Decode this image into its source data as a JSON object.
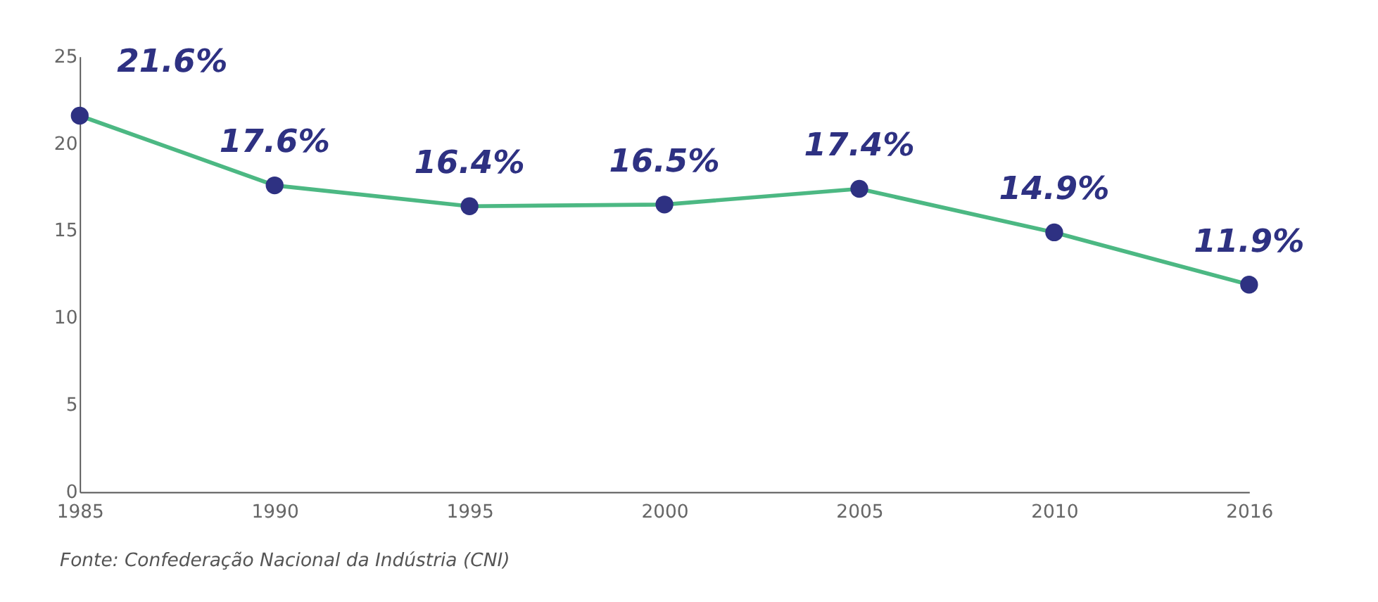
{
  "chart_data": {
    "type": "line",
    "categories": [
      "1985",
      "1990",
      "1995",
      "2000",
      "2005",
      "2010",
      "2016"
    ],
    "series": [
      {
        "color": "#4cb883",
        "colors": [
          "#2e3182",
          "#2e3182",
          "#2e3182",
          "#2e3182",
          "#2e3182",
          "#2e3182",
          "#2e3182"
        ],
        "values": [
          21.6,
          17.6,
          16.4,
          16.5,
          17.4,
          14.9,
          11.9
        ],
        "value_labels": [
          "21.6%",
          "17.6%",
          "16.4%",
          "16.5%",
          "17.4%",
          "14.9%",
          "11.9%"
        ]
      }
    ],
    "ylim": [
      0,
      25
    ],
    "yticks": [
      0,
      5,
      10,
      15,
      20,
      25
    ],
    "grid": false,
    "marker": "circle",
    "line_style": "solid",
    "annotations": [
      "Fonte: Confederação Nacional da Indústria (CNI)"
    ]
  }
}
